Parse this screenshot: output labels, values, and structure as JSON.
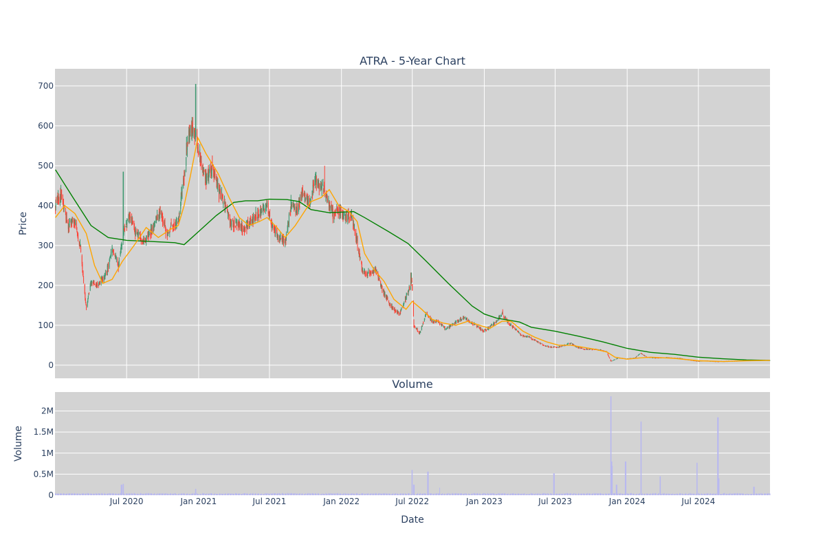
{
  "chart_data": [
    {
      "type": "candlestick",
      "title": "ATRA - 5-Year Chart",
      "xlabel": "",
      "ylabel": "Price",
      "xrange": [
        "2019-12-31",
        "2024-12-31"
      ],
      "ylim": [
        -33,
        743
      ],
      "grid": true,
      "plot_bgcolor": "#d3d3d3",
      "x_tick_labels": [
        "Jul 2020",
        "Jan 2021",
        "Jul 2021",
        "Jan 2022",
        "Jul 2022",
        "Jan 2023",
        "Jul 2023",
        "Jan 2024",
        "Jul 2024"
      ],
      "x_tick_dates": [
        "2020-07-01",
        "2021-01-01",
        "2021-07-01",
        "2022-01-01",
        "2022-07-01",
        "2023-01-01",
        "2023-07-01",
        "2024-01-01",
        "2024-07-01"
      ],
      "y_ticks": [
        0,
        100,
        200,
        300,
        400,
        500,
        600,
        700
      ],
      "y_tick_labels": [
        "0",
        "100",
        "200",
        "300",
        "400",
        "500",
        "600",
        "700"
      ],
      "colors": {
        "increasing": "#3d9970",
        "decreasing": "#ff4136",
        "ma_short": "#ffa500",
        "ma_long": "#008000"
      },
      "price_path": [
        [
          "2020-01-01",
          400
        ],
        [
          "2020-01-15",
          430
        ],
        [
          "2020-02-01",
          350
        ],
        [
          "2020-02-20",
          360
        ],
        [
          "2020-03-05",
          300
        ],
        [
          "2020-03-20",
          140
        ],
        [
          "2020-04-01",
          210
        ],
        [
          "2020-04-20",
          200
        ],
        [
          "2020-05-10",
          230
        ],
        [
          "2020-05-25",
          290
        ],
        [
          "2020-06-10",
          250
        ],
        [
          "2020-06-25",
          340
        ],
        [
          "2020-07-10",
          370
        ],
        [
          "2020-07-25",
          330
        ],
        [
          "2020-08-15",
          310
        ],
        [
          "2020-09-05",
          340
        ],
        [
          "2020-09-25",
          390
        ],
        [
          "2020-10-10",
          330
        ],
        [
          "2020-10-25",
          350
        ],
        [
          "2020-11-10",
          360
        ],
        [
          "2020-11-25",
          480
        ],
        [
          "2020-12-05",
          580
        ],
        [
          "2020-12-20",
          600
        ],
        [
          "2021-01-05",
          520
        ],
        [
          "2021-01-20",
          470
        ],
        [
          "2021-02-05",
          500
        ],
        [
          "2021-02-20",
          440
        ],
        [
          "2021-03-10",
          400
        ],
        [
          "2021-03-25",
          350
        ],
        [
          "2021-04-10",
          360
        ],
        [
          "2021-04-25",
          340
        ],
        [
          "2021-05-15",
          360
        ],
        [
          "2021-06-05",
          380
        ],
        [
          "2021-06-25",
          400
        ],
        [
          "2021-07-10",
          340
        ],
        [
          "2021-07-25",
          320
        ],
        [
          "2021-08-10",
          310
        ],
        [
          "2021-08-25",
          400
        ],
        [
          "2021-09-10",
          390
        ],
        [
          "2021-09-25",
          440
        ],
        [
          "2021-10-10",
          400
        ],
        [
          "2021-10-25",
          460
        ],
        [
          "2021-11-10",
          450
        ],
        [
          "2021-11-25",
          420
        ],
        [
          "2021-12-10",
          380
        ],
        [
          "2021-12-25",
          390
        ],
        [
          "2022-01-10",
          370
        ],
        [
          "2022-01-25",
          380
        ],
        [
          "2022-02-10",
          310
        ],
        [
          "2022-02-25",
          230
        ],
        [
          "2022-03-15",
          230
        ],
        [
          "2022-03-30",
          240
        ],
        [
          "2022-04-15",
          190
        ],
        [
          "2022-04-30",
          160
        ],
        [
          "2022-05-15",
          140
        ],
        [
          "2022-05-30",
          130
        ],
        [
          "2022-06-15",
          170
        ],
        [
          "2022-06-30",
          210
        ],
        [
          "2022-07-05",
          100
        ],
        [
          "2022-07-20",
          80
        ],
        [
          "2022-08-05",
          130
        ],
        [
          "2022-08-20",
          110
        ],
        [
          "2022-09-05",
          110
        ],
        [
          "2022-09-25",
          90
        ],
        [
          "2022-10-10",
          100
        ],
        [
          "2022-10-25",
          110
        ],
        [
          "2022-11-10",
          120
        ],
        [
          "2022-11-25",
          110
        ],
        [
          "2022-12-10",
          100
        ],
        [
          "2022-12-30",
          85
        ],
        [
          "2023-01-15",
          95
        ],
        [
          "2023-02-01",
          110
        ],
        [
          "2023-02-15",
          130
        ],
        [
          "2023-03-01",
          110
        ],
        [
          "2023-03-20",
          90
        ],
        [
          "2023-04-05",
          75
        ],
        [
          "2023-04-25",
          70
        ],
        [
          "2023-05-15",
          60
        ],
        [
          "2023-06-01",
          50
        ],
        [
          "2023-06-20",
          45
        ],
        [
          "2023-07-10",
          45
        ],
        [
          "2023-07-25",
          50
        ],
        [
          "2023-08-10",
          55
        ],
        [
          "2023-08-25",
          45
        ],
        [
          "2023-09-15",
          40
        ],
        [
          "2023-10-05",
          40
        ],
        [
          "2023-10-25",
          38
        ],
        [
          "2023-11-10",
          33
        ],
        [
          "2023-11-20",
          10
        ],
        [
          "2023-12-10",
          18
        ],
        [
          "2023-12-30",
          16
        ],
        [
          "2024-01-20",
          18
        ],
        [
          "2024-02-05",
          30
        ],
        [
          "2024-02-20",
          20
        ],
        [
          "2024-03-15",
          18
        ],
        [
          "2024-04-15",
          19
        ],
        [
          "2024-05-15",
          17
        ],
        [
          "2024-06-15",
          12
        ],
        [
          "2024-07-01",
          10
        ],
        [
          "2024-07-20",
          11
        ],
        [
          "2024-08-15",
          9
        ],
        [
          "2024-09-15",
          10
        ],
        [
          "2024-10-15",
          11
        ],
        [
          "2024-11-15",
          13
        ],
        [
          "2024-12-31",
          12
        ]
      ],
      "spikes": [
        [
          "2020-06-22",
          485
        ],
        [
          "2020-12-25",
          705
        ],
        [
          "2021-11-20",
          500
        ],
        [
          "2022-06-28",
          232
        ],
        [
          "2023-02-18",
          140
        ]
      ],
      "ma_short": [
        [
          "2020-01-01",
          370
        ],
        [
          "2020-01-25",
          400
        ],
        [
          "2020-02-20",
          380
        ],
        [
          "2020-03-20",
          330
        ],
        [
          "2020-04-10",
          250
        ],
        [
          "2020-05-01",
          205
        ],
        [
          "2020-05-25",
          215
        ],
        [
          "2020-06-20",
          260
        ],
        [
          "2020-07-20",
          300
        ],
        [
          "2020-08-20",
          345
        ],
        [
          "2020-09-20",
          320
        ],
        [
          "2020-10-20",
          340
        ],
        [
          "2020-11-10",
          350
        ],
        [
          "2020-11-25",
          400
        ],
        [
          "2020-12-10",
          470
        ],
        [
          "2020-12-30",
          570
        ],
        [
          "2021-01-20",
          530
        ],
        [
          "2021-02-20",
          480
        ],
        [
          "2021-03-20",
          420
        ],
        [
          "2021-04-15",
          370
        ],
        [
          "2021-05-10",
          350
        ],
        [
          "2021-06-05",
          360
        ],
        [
          "2021-06-25",
          370
        ],
        [
          "2021-07-20",
          345
        ],
        [
          "2021-08-10",
          320
        ],
        [
          "2021-09-05",
          350
        ],
        [
          "2021-09-25",
          380
        ],
        [
          "2021-10-15",
          410
        ],
        [
          "2021-11-10",
          420
        ],
        [
          "2021-12-01",
          440
        ],
        [
          "2021-12-25",
          400
        ],
        [
          "2022-01-20",
          385
        ],
        [
          "2022-02-10",
          360
        ],
        [
          "2022-03-01",
          280
        ],
        [
          "2022-03-25",
          240
        ],
        [
          "2022-04-20",
          210
        ],
        [
          "2022-05-15",
          165
        ],
        [
          "2022-06-15",
          140
        ],
        [
          "2022-07-01",
          160
        ],
        [
          "2022-07-25",
          140
        ],
        [
          "2022-08-20",
          115
        ],
        [
          "2022-09-20",
          105
        ],
        [
          "2022-10-20",
          100
        ],
        [
          "2022-11-20",
          110
        ],
        [
          "2022-12-20",
          100
        ],
        [
          "2023-01-15",
          92
        ],
        [
          "2023-02-15",
          110
        ],
        [
          "2023-03-10",
          110
        ],
        [
          "2023-04-10",
          85
        ],
        [
          "2023-05-10",
          70
        ],
        [
          "2023-06-10",
          58
        ],
        [
          "2023-07-10",
          50
        ],
        [
          "2023-08-10",
          50
        ],
        [
          "2023-09-10",
          45
        ],
        [
          "2023-10-10",
          40
        ],
        [
          "2023-11-10",
          33
        ],
        [
          "2023-12-01",
          20
        ],
        [
          "2024-01-01",
          15
        ],
        [
          "2024-02-01",
          18
        ],
        [
          "2024-03-01",
          20
        ],
        [
          "2024-05-01",
          17
        ],
        [
          "2024-07-01",
          11
        ],
        [
          "2024-09-01",
          9
        ],
        [
          "2024-11-01",
          11
        ],
        [
          "2024-12-31",
          12
        ]
      ],
      "ma_long": [
        [
          "2020-01-01",
          490
        ],
        [
          "2020-02-15",
          420
        ],
        [
          "2020-04-01",
          350
        ],
        [
          "2020-05-15",
          320
        ],
        [
          "2020-07-01",
          313
        ],
        [
          "2020-09-01",
          310
        ],
        [
          "2020-11-01",
          307
        ],
        [
          "2020-11-25",
          302
        ],
        [
          "2021-01-01",
          335
        ],
        [
          "2021-02-15",
          375
        ],
        [
          "2021-04-01",
          408
        ],
        [
          "2021-05-01",
          412
        ],
        [
          "2021-06-01",
          412
        ],
        [
          "2021-07-01",
          416
        ],
        [
          "2021-08-15",
          415
        ],
        [
          "2021-09-15",
          410
        ],
        [
          "2021-10-15",
          390
        ],
        [
          "2021-12-01",
          382
        ],
        [
          "2022-02-01",
          385
        ],
        [
          "2022-03-01",
          370
        ],
        [
          "2022-05-01",
          335
        ],
        [
          "2022-06-20",
          305
        ],
        [
          "2022-08-01",
          265
        ],
        [
          "2022-10-01",
          205
        ],
        [
          "2022-12-01",
          148
        ],
        [
          "2023-01-01",
          128
        ],
        [
          "2023-02-01",
          118
        ],
        [
          "2023-04-01",
          108
        ],
        [
          "2023-05-01",
          95
        ],
        [
          "2023-07-01",
          85
        ],
        [
          "2023-09-01",
          72
        ],
        [
          "2023-11-01",
          58
        ],
        [
          "2024-01-01",
          42
        ],
        [
          "2024-03-01",
          32
        ],
        [
          "2024-05-01",
          27
        ],
        [
          "2024-07-01",
          20
        ],
        [
          "2024-09-01",
          16
        ],
        [
          "2024-11-01",
          13
        ],
        [
          "2024-12-31",
          12
        ]
      ]
    },
    {
      "type": "bar",
      "title": "Volume",
      "xlabel": "Date",
      "ylabel": "Volume",
      "xrange": [
        "2019-12-31",
        "2024-12-31"
      ],
      "ylim": [
        0,
        2450000
      ],
      "grid": true,
      "plot_bgcolor": "#d3d3d3",
      "x_tick_labels": [
        "Jul 2020",
        "Jan 2021",
        "Jul 2021",
        "Jan 2022",
        "Jul 2022",
        "Jan 2023",
        "Jul 2023",
        "Jan 2024",
        "Jul 2024"
      ],
      "x_tick_dates": [
        "2020-07-01",
        "2021-01-01",
        "2021-07-01",
        "2022-01-01",
        "2022-07-01",
        "2023-01-01",
        "2023-07-01",
        "2024-01-01",
        "2024-07-01"
      ],
      "y_ticks": [
        0,
        500000,
        1000000,
        1500000,
        2000000
      ],
      "y_tick_labels": [
        "0",
        "0.5M",
        "1M",
        "1.5M",
        "2M"
      ],
      "bar_color": "#b8b8f0",
      "baseline_volume": 35000,
      "spikes": [
        [
          "2020-06-18",
          250000
        ],
        [
          "2020-06-22",
          270000
        ],
        [
          "2020-12-25",
          150000
        ],
        [
          "2022-07-01",
          600000
        ],
        [
          "2022-07-05",
          250000
        ],
        [
          "2022-08-10",
          560000
        ],
        [
          "2022-09-10",
          180000
        ],
        [
          "2023-06-28",
          520000
        ],
        [
          "2023-11-20",
          2350000
        ],
        [
          "2023-11-22",
          800000
        ],
        [
          "2023-11-25",
          700000
        ],
        [
          "2023-12-05",
          250000
        ],
        [
          "2023-12-28",
          800000
        ],
        [
          "2024-02-05",
          1750000
        ],
        [
          "2024-03-25",
          450000
        ],
        [
          "2024-06-28",
          770000
        ],
        [
          "2024-08-20",
          1850000
        ],
        [
          "2024-08-23",
          400000
        ],
        [
          "2024-11-20",
          200000
        ]
      ]
    }
  ]
}
